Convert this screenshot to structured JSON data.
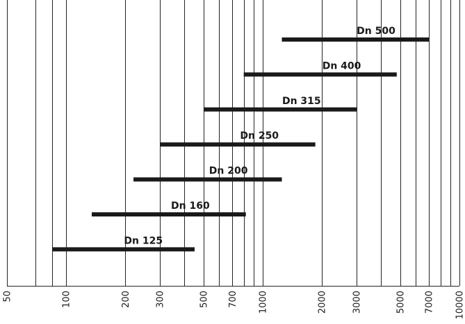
{
  "chart_data": {
    "type": "bar",
    "orientation": "horizontal-range",
    "x_scale": "log",
    "xlim": [
      50,
      10000
    ],
    "grid": true,
    "x_ticks": [
      50,
      100,
      200,
      300,
      500,
      700,
      1000,
      2000,
      3000,
      5000,
      7000,
      10000
    ],
    "x_tick_labels": [
      "50",
      "100",
      "200",
      "300",
      "500",
      "700",
      "1000",
      "2000",
      "3000",
      "5000",
      "7000",
      "10000"
    ],
    "x_gridlines": [
      50,
      70,
      85,
      100,
      200,
      300,
      400,
      500,
      600,
      700,
      800,
      900,
      1000,
      2000,
      3000,
      4000,
      5000,
      6000,
      7000,
      8000,
      9000,
      10000
    ],
    "series": [
      {
        "name": "Dn 500",
        "range": [
          1250,
          7000
        ]
      },
      {
        "name": "Dn 400",
        "range": [
          800,
          4800
        ]
      },
      {
        "name": "Dn 315",
        "range": [
          500,
          3000
        ]
      },
      {
        "name": "Dn 250",
        "range": [
          300,
          1850
        ]
      },
      {
        "name": "Dn 200",
        "range": [
          220,
          1250
        ]
      },
      {
        "name": "Dn 160",
        "range": [
          135,
          820
        ]
      },
      {
        "name": "Dn 125",
        "range": [
          85,
          450
        ]
      }
    ]
  }
}
